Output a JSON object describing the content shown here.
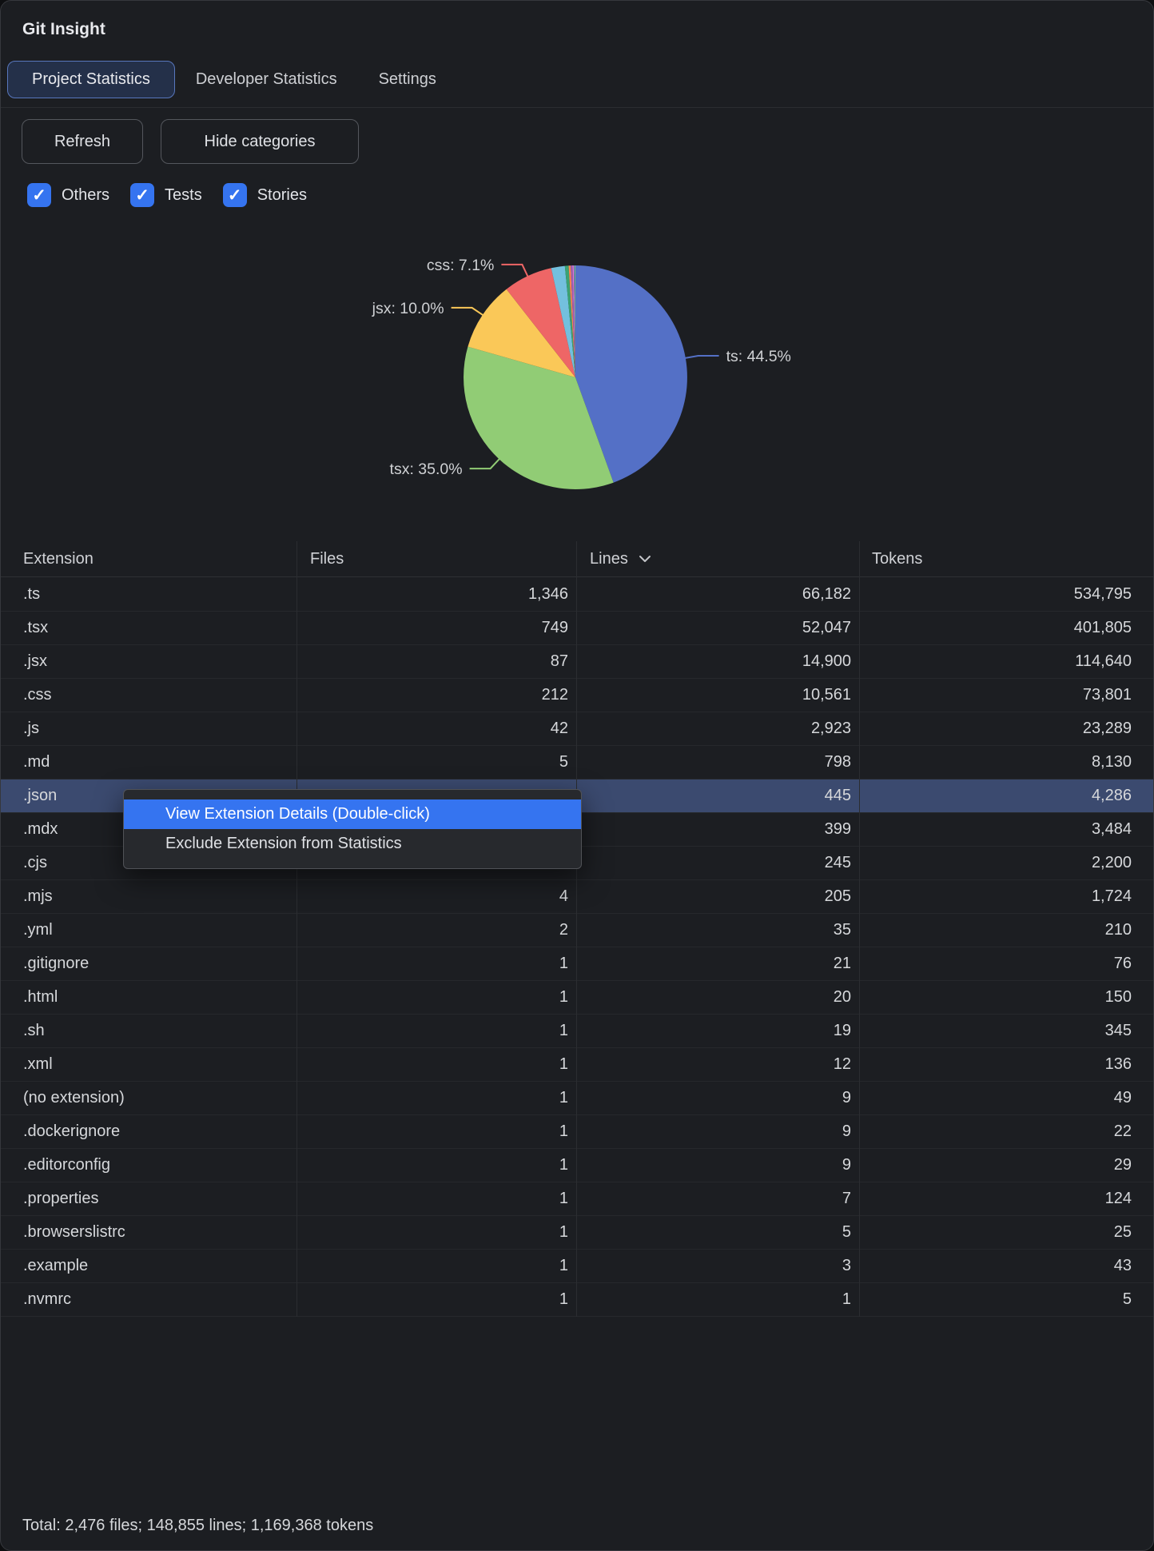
{
  "window": {
    "title": "Git Insight"
  },
  "tabs": [
    {
      "label": "Project Statistics",
      "selected": true
    },
    {
      "label": "Developer Statistics",
      "selected": false
    },
    {
      "label": "Settings",
      "selected": false
    }
  ],
  "toolbar": {
    "refresh_label": "Refresh",
    "hide_categories_label": "Hide categories"
  },
  "filters": [
    {
      "label": "Others",
      "checked": true
    },
    {
      "label": "Tests",
      "checked": true
    },
    {
      "label": "Stories",
      "checked": true
    }
  ],
  "icons": {
    "checkmark": "✓"
  },
  "chart_data": {
    "type": "pie",
    "title": "",
    "value_unit": "lines",
    "total": 148855,
    "start_angle_deg": 0,
    "direction": "clockwise",
    "label_min_percent": 5,
    "label_color": "#cfd1d4",
    "slices": [
      {
        "label": "ts",
        "value": 66182,
        "percent": 44.5,
        "color": "#5470c6",
        "callout": "ts: 44.5%"
      },
      {
        "label": "tsx",
        "value": 52047,
        "percent": 35.0,
        "color": "#91cc75",
        "callout": "tsx: 35.0%"
      },
      {
        "label": "jsx",
        "value": 14900,
        "percent": 10.0,
        "color": "#fac858",
        "callout": "jsx: 10.0%"
      },
      {
        "label": "css",
        "value": 10561,
        "percent": 7.1,
        "color": "#ee6666",
        "callout": "css: 7.1%"
      },
      {
        "label": "js",
        "value": 2923,
        "percent": 2.0,
        "color": "#73c0de"
      },
      {
        "label": "md",
        "value": 798,
        "percent": 0.5,
        "color": "#3ba272"
      },
      {
        "label": "json",
        "value": 445,
        "percent": 0.3,
        "color": "#fc8452"
      },
      {
        "label": "mdx",
        "value": 399,
        "percent": 0.3,
        "color": "#9a60b4"
      },
      {
        "label": "cjs",
        "value": 245,
        "percent": 0.2,
        "color": "#ea7ccc"
      },
      {
        "label": "mjs",
        "value": 205,
        "percent": 0.1,
        "color": "#5470c6"
      },
      {
        "label": "others",
        "value": 150,
        "percent": 0.1,
        "color": "#91cc75"
      }
    ]
  },
  "table": {
    "columns": [
      {
        "label": "Extension",
        "align": "left"
      },
      {
        "label": "Files",
        "align": "right"
      },
      {
        "label": "Lines",
        "align": "right",
        "sorted": "desc"
      },
      {
        "label": "Tokens",
        "align": "right"
      }
    ],
    "selected_extension": ".json",
    "rows": [
      {
        "ext": ".ts",
        "files": "1,346",
        "lines": "66,182",
        "tokens": "534,795"
      },
      {
        "ext": ".tsx",
        "files": "749",
        "lines": "52,047",
        "tokens": "401,805"
      },
      {
        "ext": ".jsx",
        "files": "87",
        "lines": "14,900",
        "tokens": "114,640"
      },
      {
        "ext": ".css",
        "files": "212",
        "lines": "10,561",
        "tokens": "73,801"
      },
      {
        "ext": ".js",
        "files": "42",
        "lines": "2,923",
        "tokens": "23,289"
      },
      {
        "ext": ".md",
        "files": "5",
        "lines": "798",
        "tokens": "8,130"
      },
      {
        "ext": ".json",
        "files": null,
        "lines": "445",
        "tokens": "4,286"
      },
      {
        "ext": ".mdx",
        "files": null,
        "lines": "399",
        "tokens": "3,484"
      },
      {
        "ext": ".cjs",
        "files": null,
        "lines": "245",
        "tokens": "2,200"
      },
      {
        "ext": ".mjs",
        "files": "4",
        "lines": "205",
        "tokens": "1,724"
      },
      {
        "ext": ".yml",
        "files": "2",
        "lines": "35",
        "tokens": "210"
      },
      {
        "ext": ".gitignore",
        "files": "1",
        "lines": "21",
        "tokens": "76"
      },
      {
        "ext": ".html",
        "files": "1",
        "lines": "20",
        "tokens": "150"
      },
      {
        "ext": ".sh",
        "files": "1",
        "lines": "19",
        "tokens": "345"
      },
      {
        "ext": ".xml",
        "files": "1",
        "lines": "12",
        "tokens": "136"
      },
      {
        "ext": "(no extension)",
        "files": "1",
        "lines": "9",
        "tokens": "49"
      },
      {
        "ext": ".dockerignore",
        "files": "1",
        "lines": "9",
        "tokens": "22"
      },
      {
        "ext": ".editorconfig",
        "files": "1",
        "lines": "9",
        "tokens": "29"
      },
      {
        "ext": ".properties",
        "files": "1",
        "lines": "7",
        "tokens": "124"
      },
      {
        "ext": ".browserslistrc",
        "files": "1",
        "lines": "5",
        "tokens": "25"
      },
      {
        "ext": ".example",
        "files": "1",
        "lines": "3",
        "tokens": "43"
      },
      {
        "ext": ".nvmrc",
        "files": "1",
        "lines": "1",
        "tokens": "5"
      }
    ]
  },
  "context_menu": {
    "items": [
      {
        "label": "View Extension Details (Double-click)",
        "highlighted": true
      },
      {
        "label": "Exclude Extension from Statistics",
        "highlighted": false
      }
    ]
  },
  "footer": {
    "total": "Total: 2,476 files; 148,855 lines; 1,169,368 tokens"
  }
}
